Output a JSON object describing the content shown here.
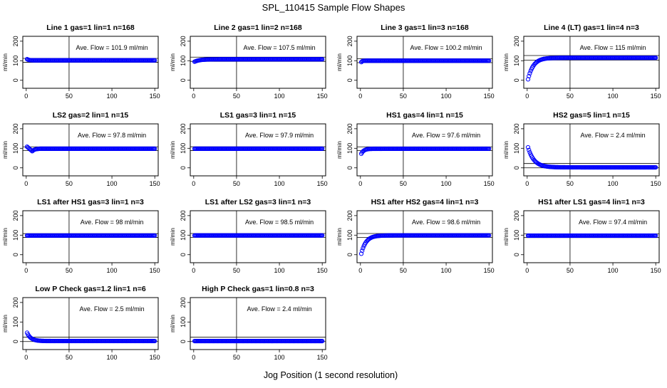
{
  "page": {
    "title": "SPL_110415  Sample Flow Shapes",
    "xlabel": "Jog Position (1 second resolution)"
  },
  "chart_data": [
    {
      "type": "scatter",
      "title": "Line 1 gas=1 lin=1 n=168",
      "ylabel": "ml/min",
      "annotation": "Ave. Flow =  101.9  ml/min",
      "xlim": [
        0,
        150
      ],
      "ylim": [
        0,
        200
      ],
      "xticks": [
        "0",
        "50",
        "100",
        "150"
      ],
      "yticks": [
        "0",
        "100",
        "200"
      ],
      "vline": 50,
      "hlines": [
        91.7,
        112.1
      ],
      "shape": "decay",
      "y0": 108,
      "y_final": 101.9,
      "ramp_to": 8,
      "points": [
        [
          1,
          108
        ],
        [
          3,
          107
        ],
        [
          5,
          104
        ],
        [
          10,
          102
        ],
        [
          20,
          101.9
        ],
        [
          50,
          101.9
        ],
        [
          100,
          101.9
        ],
        [
          150,
          101.9
        ]
      ],
      "series_color": "#0000ff"
    },
    {
      "type": "scatter",
      "title": "Line 2 gas=1 lin=2 n=168",
      "ylabel": "ml/min",
      "annotation": "Ave. Flow =  107.5  ml/min",
      "xlim": [
        0,
        150
      ],
      "ylim": [
        0,
        200
      ],
      "xticks": [
        "0",
        "50",
        "100",
        "150"
      ],
      "yticks": [
        "0",
        "100",
        "200"
      ],
      "vline": 50,
      "hlines": [
        96.8,
        118.3
      ],
      "shape": "rise",
      "y0": 95,
      "y_final": 107.5,
      "ramp_to": 25,
      "points": [
        [
          1,
          95
        ],
        [
          5,
          98
        ],
        [
          15,
          103
        ],
        [
          25,
          107
        ],
        [
          50,
          107.5
        ],
        [
          100,
          107.5
        ],
        [
          150,
          107.5
        ]
      ],
      "series_color": "#0000ff"
    },
    {
      "type": "scatter",
      "title": "Line 3 gas=1 lin=3 n=168",
      "ylabel": "ml/min",
      "annotation": "Ave. Flow =  100.2  ml/min",
      "xlim": [
        0,
        150
      ],
      "ylim": [
        0,
        200
      ],
      "xticks": [
        "0",
        "50",
        "100",
        "150"
      ],
      "yticks": [
        "0",
        "100",
        "200"
      ],
      "vline": 50,
      "hlines": [
        90.2,
        110.2
      ],
      "shape": "rise",
      "y0": 93,
      "y_final": 100.2,
      "ramp_to": 5,
      "points": [
        [
          1,
          93
        ],
        [
          3,
          97
        ],
        [
          5,
          100
        ],
        [
          50,
          100.2
        ],
        [
          100,
          100.2
        ],
        [
          150,
          100.2
        ]
      ],
      "series_color": "#0000ff"
    },
    {
      "type": "scatter",
      "title": "Line 4 (LT) gas=1 lin=4 n=3",
      "ylabel": "ml/min",
      "annotation": "Ave. Flow =  115  ml/min",
      "xlim": [
        0,
        150
      ],
      "ylim": [
        0,
        200
      ],
      "xticks": [
        "0",
        "50",
        "100",
        "150"
      ],
      "yticks": [
        "0",
        "100",
        "200"
      ],
      "vline": 50,
      "hlines": [
        103.5,
        126.5
      ],
      "shape": "rise",
      "y0": 5,
      "y_final": 115,
      "ramp_to": 25,
      "points": [
        [
          1,
          5
        ],
        [
          3,
          30
        ],
        [
          6,
          60
        ],
        [
          10,
          90
        ],
        [
          15,
          105
        ],
        [
          25,
          114
        ],
        [
          50,
          115
        ],
        [
          100,
          115
        ],
        [
          150,
          115
        ]
      ],
      "series_color": "#0000ff"
    },
    {
      "type": "scatter",
      "title": "LS2 gas=2 lin=1 n=15",
      "ylabel": "ml/min",
      "annotation": "Ave. Flow =  97.8  ml/min",
      "xlim": [
        0,
        150
      ],
      "ylim": [
        0,
        200
      ],
      "xticks": [
        "0",
        "50",
        "100",
        "150"
      ],
      "yticks": [
        "0",
        "100",
        "200"
      ],
      "vline": 50,
      "hlines": [
        88,
        107.6
      ],
      "shape": "dip",
      "y0": 108,
      "y_dip": 85,
      "dip_at": 7,
      "y_final": 97.8,
      "ramp_to": 15,
      "points": [
        [
          1,
          108
        ],
        [
          4,
          95
        ],
        [
          7,
          85
        ],
        [
          10,
          90
        ],
        [
          15,
          97
        ],
        [
          50,
          97.8
        ],
        [
          100,
          97.8
        ],
        [
          150,
          97.8
        ]
      ],
      "series_color": "#0000ff"
    },
    {
      "type": "scatter",
      "title": "LS1 gas=3 lin=1 n=15",
      "ylabel": "ml/min",
      "annotation": "Ave. Flow =  97.9  ml/min",
      "xlim": [
        0,
        150
      ],
      "ylim": [
        0,
        200
      ],
      "xticks": [
        "0",
        "50",
        "100",
        "150"
      ],
      "yticks": [
        "0",
        "100",
        "200"
      ],
      "vline": 50,
      "hlines": [
        88.1,
        107.7
      ],
      "shape": "flat",
      "y0": 97.9,
      "y_final": 97.9,
      "ramp_to": 1,
      "points": [
        [
          1,
          97.9
        ],
        [
          50,
          97.9
        ],
        [
          100,
          97.9
        ],
        [
          150,
          97.9
        ]
      ],
      "series_color": "#0000ff"
    },
    {
      "type": "scatter",
      "title": "HS1 gas=4 lin=1 n=15",
      "ylabel": "ml/min",
      "annotation": "Ave. Flow =  97.6  ml/min",
      "xlim": [
        0,
        150
      ],
      "ylim": [
        0,
        200
      ],
      "xticks": [
        "0",
        "50",
        "100",
        "150"
      ],
      "yticks": [
        "0",
        "100",
        "200"
      ],
      "vline": 50,
      "hlines": [
        87.8,
        107.4
      ],
      "shape": "rise",
      "y0": 72,
      "y_final": 97.6,
      "ramp_to": 12,
      "points": [
        [
          1,
          72
        ],
        [
          3,
          80
        ],
        [
          6,
          90
        ],
        [
          12,
          97
        ],
        [
          50,
          97.6
        ],
        [
          100,
          97.6
        ],
        [
          150,
          97.6
        ]
      ],
      "series_color": "#0000ff"
    },
    {
      "type": "scatter",
      "title": "HS2 gas=5 lin=1 n=15",
      "ylabel": "ml/min",
      "annotation": "Ave. Flow =  2.4  ml/min",
      "xlim": [
        0,
        150
      ],
      "ylim": [
        0,
        200
      ],
      "xticks": [
        "0",
        "50",
        "100",
        "150"
      ],
      "yticks": [
        "0",
        "100",
        "200"
      ],
      "vline": 50,
      "hlines": [
        0,
        22
      ],
      "shape": "decay",
      "y0": 105,
      "y_final": 2.4,
      "ramp_to": 28,
      "points": [
        [
          1,
          105
        ],
        [
          5,
          85
        ],
        [
          10,
          55
        ],
        [
          15,
          30
        ],
        [
          20,
          12
        ],
        [
          28,
          3
        ],
        [
          50,
          2.4
        ],
        [
          100,
          2.4
        ],
        [
          150,
          2.4
        ]
      ],
      "series_color": "#0000ff"
    },
    {
      "type": "scatter",
      "title": "LS1 after HS1 gas=3 lin=1 n=3",
      "ylabel": "ml/min",
      "annotation": "Ave. Flow =  98  ml/min",
      "xlim": [
        0,
        150
      ],
      "ylim": [
        0,
        200
      ],
      "xticks": [
        "0",
        "50",
        "100",
        "150"
      ],
      "yticks": [
        "0",
        "100",
        "200"
      ],
      "vline": 50,
      "hlines": [
        88.2,
        107.8
      ],
      "shape": "flat",
      "y0": 98,
      "y_final": 98,
      "ramp_to": 1,
      "points": [
        [
          1,
          98
        ],
        [
          50,
          98
        ],
        [
          100,
          98
        ],
        [
          150,
          98
        ]
      ],
      "series_color": "#0000ff"
    },
    {
      "type": "scatter",
      "title": "LS1 after LS2 gas=3 lin=1 n=3",
      "ylabel": "ml/min",
      "annotation": "Ave. Flow =  98.5  ml/min",
      "xlim": [
        0,
        150
      ],
      "ylim": [
        0,
        200
      ],
      "xticks": [
        "0",
        "50",
        "100",
        "150"
      ],
      "yticks": [
        "0",
        "100",
        "200"
      ],
      "vline": 50,
      "hlines": [
        88.7,
        108.4
      ],
      "shape": "flat",
      "y0": 98.5,
      "y_final": 98.5,
      "ramp_to": 1,
      "points": [
        [
          1,
          98.5
        ],
        [
          50,
          98.5
        ],
        [
          100,
          98.5
        ],
        [
          150,
          98.5
        ]
      ],
      "series_color": "#0000ff"
    },
    {
      "type": "scatter",
      "title": "HS1 after HS2 gas=4 lin=1 n=3",
      "ylabel": "ml/min",
      "annotation": "Ave. Flow =  98.6  ml/min",
      "xlim": [
        0,
        150
      ],
      "ylim": [
        0,
        200
      ],
      "xticks": [
        "0",
        "50",
        "100",
        "150"
      ],
      "yticks": [
        "0",
        "100",
        "200"
      ],
      "vline": 50,
      "hlines": [
        88.7,
        108.5
      ],
      "shape": "rise",
      "y0": 5,
      "y_final": 98.6,
      "ramp_to": 22,
      "points": [
        [
          1,
          5
        ],
        [
          3,
          30
        ],
        [
          6,
          60
        ],
        [
          10,
          80
        ],
        [
          15,
          92
        ],
        [
          22,
          98
        ],
        [
          50,
          98.6
        ],
        [
          100,
          98.6
        ],
        [
          150,
          98.6
        ]
      ],
      "series_color": "#0000ff"
    },
    {
      "type": "scatter",
      "title": "HS1 after LS1 gas=4 lin=1 n=3",
      "ylabel": "ml/min",
      "annotation": "Ave. Flow =  97.4  ml/min",
      "xlim": [
        0,
        150
      ],
      "ylim": [
        0,
        200
      ],
      "xticks": [
        "0",
        "50",
        "100",
        "150"
      ],
      "yticks": [
        "0",
        "100",
        "200"
      ],
      "vline": 50,
      "hlines": [
        87.7,
        107.1
      ],
      "shape": "flat",
      "y0": 97.4,
      "y_final": 97.4,
      "ramp_to": 1,
      "points": [
        [
          1,
          97.4
        ],
        [
          50,
          97.4
        ],
        [
          100,
          97.4
        ],
        [
          145,
          92
        ],
        [
          150,
          97.4
        ]
      ],
      "series_color": "#0000ff"
    },
    {
      "type": "scatter",
      "title": "Low P Check gas=1.2 lin=1 n=6",
      "ylabel": "ml/min",
      "annotation": "Ave. Flow =  2.5  ml/min",
      "xlim": [
        0,
        150
      ],
      "ylim": [
        0,
        200
      ],
      "xticks": [
        "0",
        "50",
        "100",
        "150"
      ],
      "yticks": [
        "0",
        "100",
        "200"
      ],
      "vline": 50,
      "hlines": [
        0,
        22
      ],
      "shape": "decay",
      "y0": 45,
      "y_final": 2.5,
      "ramp_to": 18,
      "points": [
        [
          1,
          45
        ],
        [
          4,
          35
        ],
        [
          8,
          18
        ],
        [
          12,
          8
        ],
        [
          18,
          3
        ],
        [
          50,
          2.5
        ],
        [
          100,
          2.5
        ],
        [
          150,
          2.5
        ]
      ],
      "series_color": "#0000ff"
    },
    {
      "type": "scatter",
      "title": "High P Check gas=1 lin=0.8 n=3",
      "ylabel": "ml/min",
      "annotation": "Ave. Flow =  2.4  ml/min",
      "xlim": [
        0,
        150
      ],
      "ylim": [
        0,
        200
      ],
      "xticks": [
        "0",
        "50",
        "100",
        "150"
      ],
      "yticks": [
        "0",
        "100",
        "200"
      ],
      "vline": 50,
      "hlines": [
        0,
        22
      ],
      "shape": "flat",
      "y0": 2.4,
      "y_final": 2.4,
      "ramp_to": 1,
      "points": [
        [
          1,
          2.4
        ],
        [
          50,
          2.4
        ],
        [
          100,
          2.4
        ],
        [
          150,
          2.4
        ]
      ],
      "series_color": "#0000ff"
    }
  ]
}
